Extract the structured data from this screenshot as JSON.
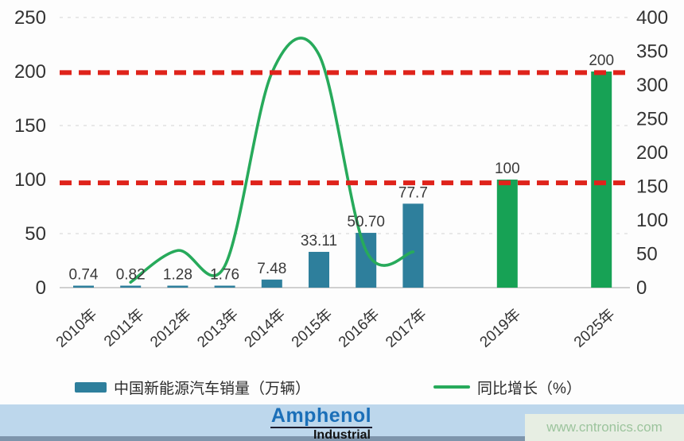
{
  "chart_data": {
    "type": "combo-bar-line",
    "categories": [
      "2010年",
      "2011年",
      "2012年",
      "2013年",
      "2014年",
      "2015年",
      "2016年",
      "2017年",
      "2019年",
      "2025年"
    ],
    "bar_series": {
      "name": "中国新能源汽车销量（万辆）",
      "values": [
        0.74,
        0.82,
        1.28,
        1.76,
        7.48,
        33.11,
        50.7,
        77.7,
        100,
        200
      ],
      "labels": [
        "0.74",
        "0.82",
        "1.28",
        "1.76",
        "7.48",
        "33.11",
        "50.70",
        "77.7",
        "100",
        "200"
      ],
      "styles": [
        "actual",
        "actual",
        "actual",
        "actual",
        "actual",
        "actual",
        "actual",
        "actual",
        "target",
        "target"
      ]
    },
    "line_series": {
      "name": "同比增长（%）",
      "axis": "right",
      "points": [
        {
          "category": "2011年",
          "value": 8
        },
        {
          "category": "2012年",
          "value": 55
        },
        {
          "category": "2013年",
          "value": 32
        },
        {
          "category": "2014年",
          "value": 318
        },
        {
          "category": "2015年",
          "value": 345
        },
        {
          "category": "2016年",
          "value": 55
        },
        {
          "category": "2017年",
          "value": 53
        }
      ]
    },
    "left_axis": {
      "min": 0,
      "max": 250,
      "ticks": [
        "250",
        "200",
        "150",
        "100",
        "50",
        "0"
      ]
    },
    "right_axis": {
      "min": 0,
      "max": 400,
      "ticks": [
        "400",
        "350",
        "300",
        "250",
        "200",
        "150",
        "100",
        "50",
        "0"
      ]
    },
    "gridlines_left_values": [
      250,
      150,
      50
    ],
    "reference_lines": [
      {
        "left_value": 199,
        "style": "dashed",
        "color_key": "reference"
      },
      {
        "left_value": 97,
        "style": "dashed",
        "color_key": "reference"
      }
    ],
    "legend": [
      {
        "swatch": "bar",
        "label": "中国新能源汽车销量（万辆）"
      },
      {
        "swatch": "line",
        "label": "同比增长（%）"
      }
    ]
  },
  "colors": {
    "bar_actual": "#2E7F9C",
    "bar_target": "#17A255",
    "line": "#27AA5B",
    "reference": "#DF231B",
    "grid": "#D4D4D4",
    "axis_line": "#C2C2C2",
    "tick_text": "#333333",
    "value_text": "#3A3A3A",
    "strip_bg": "#BDD7EC",
    "strip_dark": "#7E95AC",
    "watermark_bg": "#E7EEE3",
    "watermark_text": "#9CC49D",
    "logo_blue": "#1B6FB8"
  },
  "branding": {
    "logo_primary": "Amphenol",
    "logo_secondary": "Industrial"
  },
  "watermark": {
    "text": "www.cntronics.com"
  }
}
